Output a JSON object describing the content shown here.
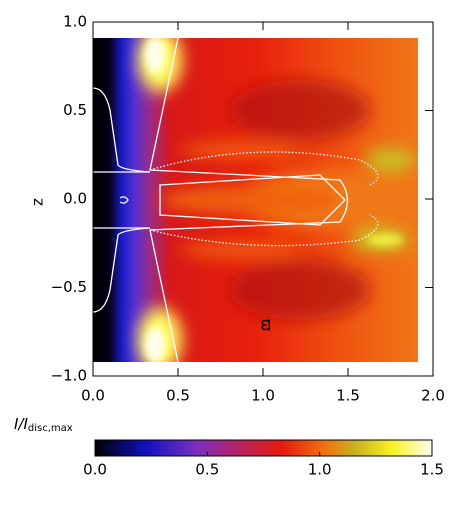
{
  "chart_data": {
    "type": "heatmap",
    "xlabel": "ϖ",
    "ylabel": "z",
    "xlim": [
      0,
      2
    ],
    "ylim": [
      -1,
      1
    ],
    "xticks": [
      {
        "value": 0,
        "label": "0.0"
      },
      {
        "value": 0.5,
        "label": "0.5"
      },
      {
        "value": 1,
        "label": "1.0"
      },
      {
        "value": 1.5,
        "label": "1.5"
      },
      {
        "value": 2,
        "label": "2.0"
      }
    ],
    "yticks": [
      {
        "value": -1,
        "label": "−1.0"
      },
      {
        "value": -0.5,
        "label": "−0.5"
      },
      {
        "value": 0,
        "label": "0.0"
      },
      {
        "value": 0.5,
        "label": "0.5"
      },
      {
        "value": 1,
        "label": "1.0"
      }
    ],
    "colorbar": {
      "label": "I/I",
      "label_sub": "disc,max",
      "clim": [
        0,
        1.5
      ],
      "ticks": [
        {
          "value": 0,
          "label": "0.0"
        },
        {
          "value": 0.5,
          "label": "0.5"
        },
        {
          "value": 1,
          "label": "1.0"
        },
        {
          "value": 1.5,
          "label": "1.5"
        }
      ]
    }
  }
}
